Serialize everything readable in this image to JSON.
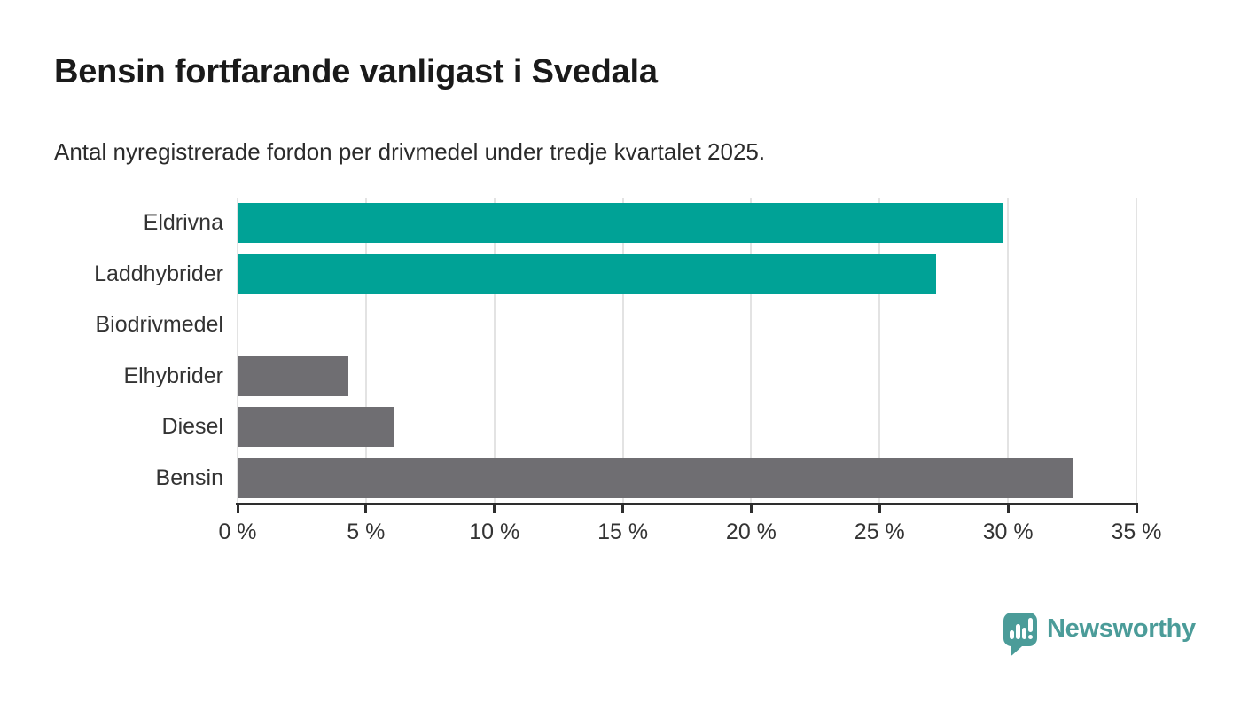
{
  "header": {
    "title": "Bensin fortfarande vanligast i Svedala",
    "subtitle": "Antal nyregistrerade fordon per drivmedel under tredje kvartalet 2025."
  },
  "chart_data": {
    "type": "bar",
    "orientation": "horizontal",
    "title": "Bensin fortfarande vanligast i Svedala",
    "subtitle": "Antal nyregistrerade fordon per drivmedel under tredje kvartalet 2025.",
    "categories": [
      "Eldrivna",
      "Laddhybrider",
      "Biodrivmedel",
      "Elhybrider",
      "Diesel",
      "Bensin"
    ],
    "values": [
      29.8,
      27.2,
      0,
      4.3,
      6.1,
      32.5
    ],
    "unit": "%",
    "bar_colors": [
      "#00a296",
      "#00a296",
      "#00a296",
      "#6f6e72",
      "#6f6e72",
      "#6f6e72"
    ],
    "xlabel": "",
    "ylabel": "",
    "xlim": [
      0,
      35
    ],
    "x_ticks": [
      0,
      5,
      10,
      15,
      20,
      25,
      30,
      35
    ],
    "x_tick_labels": [
      "0 %",
      "5 %",
      "10 %",
      "15 %",
      "20 %",
      "25 %",
      "30 %",
      "35 %"
    ],
    "grid": true,
    "legend": false
  },
  "colors": {
    "accent_teal": "#00a296",
    "neutral_gray": "#6f6e72",
    "brand_teal": "#4b9c99"
  },
  "footer": {
    "brand": "Newsworthy"
  }
}
